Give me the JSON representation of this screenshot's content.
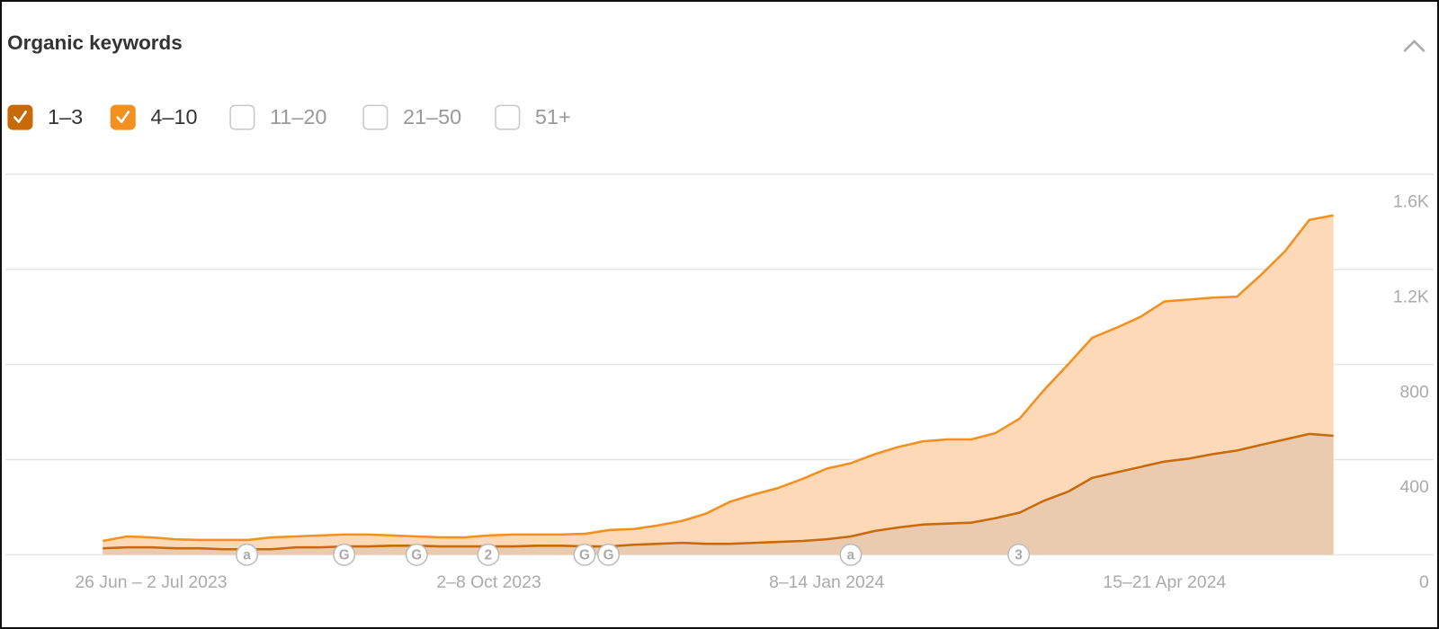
{
  "header": {
    "title": "Organic keywords"
  },
  "chart_data": {
    "type": "stacked-area",
    "categories": [
      null,
      null,
      "26 Jun – 2 Jul 2023",
      null,
      null,
      null,
      null,
      null,
      null,
      null,
      null,
      null,
      null,
      null,
      null,
      null,
      "2–8 Oct 2023",
      null,
      null,
      null,
      null,
      null,
      null,
      null,
      null,
      null,
      null,
      null,
      null,
      null,
      "8–14 Jan 2024",
      null,
      null,
      null,
      null,
      null,
      null,
      null,
      null,
      null,
      null,
      null,
      null,
      null,
      "15–21 Apr 2024",
      null,
      null,
      null,
      null,
      null,
      null,
      null
    ],
    "series": [
      {
        "name": "1–3",
        "color": "#c96a0a",
        "fill": "#ebcbb0",
        "checked": true,
        "values": [
          27,
          31,
          31,
          27,
          27,
          23,
          23,
          23,
          31,
          31,
          35,
          35,
          38,
          38,
          35,
          35,
          35,
          35,
          38,
          38,
          35,
          35,
          42,
          46,
          50,
          46,
          46,
          50,
          54,
          58,
          65,
          77,
          100,
          115,
          127,
          131,
          135,
          154,
          177,
          227,
          265,
          323,
          346,
          369,
          392,
          404,
          423,
          438,
          462,
          485,
          508,
          500
        ]
      },
      {
        "name": "4–10",
        "color": "#f39020",
        "fill": "#fdd9b8",
        "checked": true,
        "values": [
          31,
          46,
          42,
          38,
          35,
          39,
          39,
          50,
          46,
          50,
          50,
          50,
          43,
          39,
          38,
          38,
          46,
          50,
          47,
          47,
          53,
          69,
          66,
          77,
          92,
          127,
          177,
          204,
          227,
          261,
          297,
          308,
          323,
          339,
          350,
          354,
          350,
          358,
          396,
          465,
          535,
          589,
          608,
          631,
          673,
          669,
          658,
          647,
          715,
          792,
          900,
          927
        ]
      }
    ],
    "unchecked_series": [
      "11–20",
      "21–50",
      "51+"
    ],
    "events": [
      "a",
      "G",
      "G",
      "2",
      "G",
      "G",
      "a",
      "3"
    ],
    "ylim": [
      0,
      1600
    ],
    "yticks": [
      0,
      400,
      800,
      {
        "value": 1200,
        "label": "1.2K"
      },
      {
        "value": 1600,
        "label": "1.6K"
      }
    ],
    "grid": true
  }
}
